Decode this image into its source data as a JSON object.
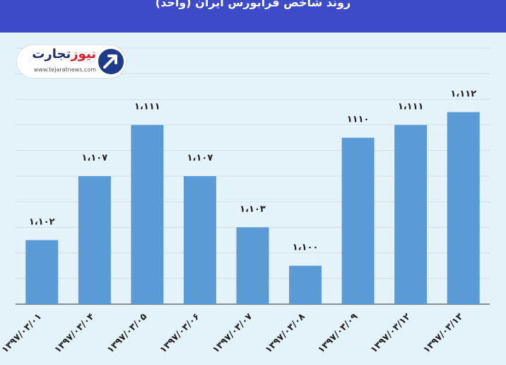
{
  "chart_data": {
    "type": "bar",
    "title": "روند شاخص فرابورس ایران (واحد)",
    "categories": [
      "۱۳۹۷/۰۳/۰۱",
      "۱۳۹۷/۰۳/۰۴",
      "۱۳۹۷/۰۳/۰۵",
      "۱۳۹۷/۰۳/۰۶",
      "۱۳۹۷/۰۳/۰۷",
      "۱۳۹۷/۰۳/۰۸",
      "۱۳۹۷/۰۳/۰۹",
      "۱۳۹۷/۰۳/۱۲",
      "۱۳۹۷/۰۳/۱۳"
    ],
    "values": [
      1102,
      1107,
      1111,
      1107,
      1103,
      1100,
      1110,
      1111,
      1112
    ],
    "value_labels": [
      "۱،۱۰۲",
      "۱،۱۰۷",
      "۱،۱۱۱",
      "۱،۱۰۷",
      "۱،۱۰۳",
      "۱،۱۰۰",
      "۱۱۱۰",
      "۱،۱۱۱",
      "۱،۱۱۲"
    ],
    "ylim": [
      1097,
      1117
    ],
    "grid": true,
    "colors": {
      "bar": "#5b9bd5",
      "title_bar": "#3d4bc9",
      "panel": "#e4f2fa",
      "grid": "#d7dde2"
    }
  },
  "logo": {
    "name_main": "تجارت",
    "name_accent": "نیوز",
    "url": "www.tejaratnews.com",
    "icon": "arrow-up-right-icon"
  }
}
